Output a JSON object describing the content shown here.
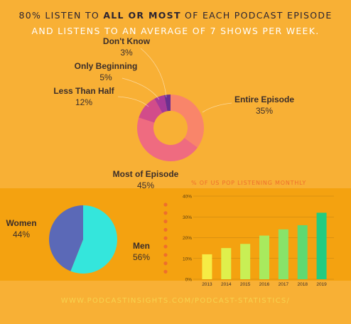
{
  "header": {
    "line1_pre": "80% LISTEN TO ",
    "line1_bold": "ALL OR MOST",
    "line1_post": " OF EACH PODCAST EPISODE",
    "line2": "AND LISTENS TO AN AVERAGE OF 7 SHOWS PER WEEK."
  },
  "colors": {
    "background": "#f8b035",
    "band": "#f4a210",
    "accent_orange": "#ee6f2c",
    "footer": "#f7d34f"
  },
  "footer": "WWW.PODCASTINSIGHTS.COM/PODCAST-STATISTICS/",
  "chart_data": [
    {
      "type": "pie",
      "variant": "donut",
      "slices": [
        {
          "name": "Entire Episode",
          "label": "35%",
          "value": 35,
          "color": "#f9856a"
        },
        {
          "name": "Most of Episode",
          "label": "45%",
          "value": 45,
          "color": "#ef6b80"
        },
        {
          "name": "Less Than Half",
          "label": "12%",
          "value": 12,
          "color": "#d24c8a"
        },
        {
          "name": "Only Beginning",
          "label": "5%",
          "value": 5,
          "color": "#a83a99"
        },
        {
          "name": "Don't Know",
          "label": "3%",
          "value": 3,
          "color": "#6b2f90"
        }
      ]
    },
    {
      "type": "pie",
      "slices": [
        {
          "name": "Men",
          "label": "56%",
          "value": 56,
          "color": "#34e6dc"
        },
        {
          "name": "Women",
          "label": "44%",
          "value": 44,
          "color": "#5b69b7"
        }
      ]
    },
    {
      "type": "bar",
      "title": "% OF US POP LISTENING MONTHLY",
      "categories": [
        "2013",
        "2014",
        "2015",
        "2016",
        "2017",
        "2018",
        "2019"
      ],
      "values": [
        12,
        15,
        17,
        21,
        24,
        26,
        32
      ],
      "colors": [
        "#f6ec45",
        "#dff04c",
        "#c8ef55",
        "#a8ea5e",
        "#88e36a",
        "#5fd972",
        "#22cc80"
      ],
      "ylim": [
        0,
        40
      ],
      "yticks": [
        "0%",
        "10%",
        "20%",
        "30%",
        "40%"
      ],
      "grid": true
    }
  ]
}
